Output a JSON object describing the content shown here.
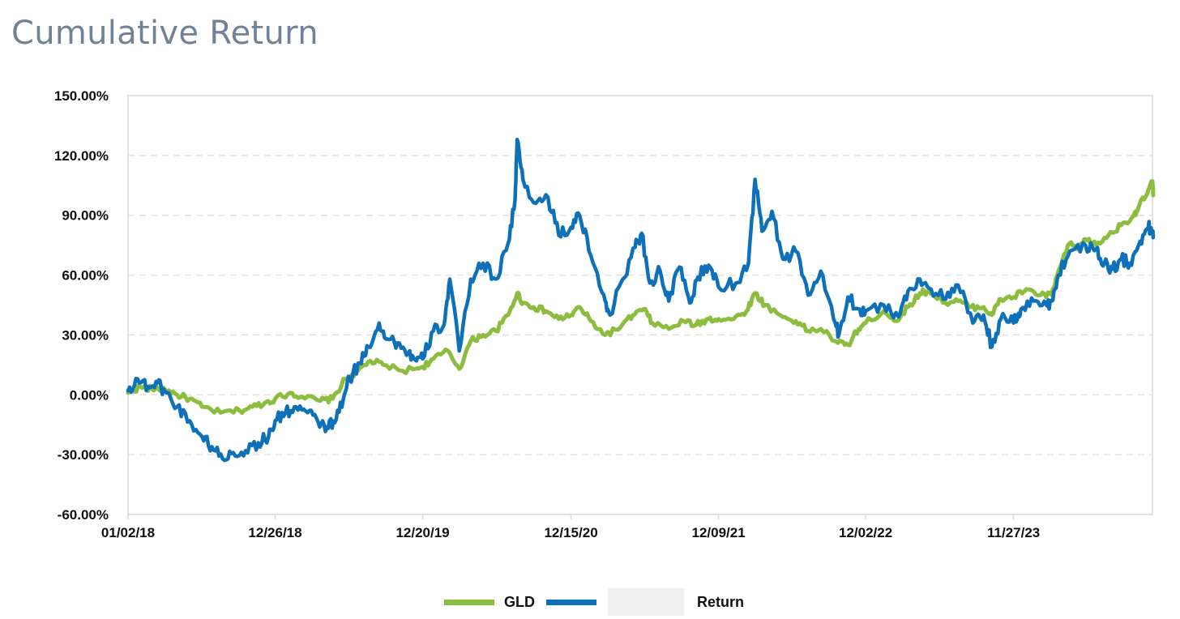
{
  "title": "Cumulative Return",
  "chart_data": {
    "type": "line",
    "title": "Cumulative Return",
    "xlabel": "",
    "ylabel": "",
    "x_ticks": [
      "01/02/18",
      "12/26/18",
      "12/20/19",
      "12/15/20",
      "12/09/21",
      "12/02/22",
      "11/27/23"
    ],
    "y_ticks": [
      "150.00%",
      "120.00%",
      "90.00%",
      "60.00%",
      "30.00%",
      "0.00%",
      "-30.00%",
      "-60.00%"
    ],
    "ylim": [
      -60,
      150
    ],
    "x_range": [
      "01/02/18",
      "2024-10"
    ],
    "grid": "horizontal dashed",
    "legend_position": "bottom-center",
    "series": [
      {
        "name": "GLD",
        "color": "#8cbd3f",
        "points": [
          [
            "2018-01-02",
            1
          ],
          [
            "2018-02-01",
            4
          ],
          [
            "2018-03-01",
            3
          ],
          [
            "2018-04-01",
            3
          ],
          [
            "2018-05-01",
            0
          ],
          [
            "2018-06-01",
            -2
          ],
          [
            "2018-07-01",
            -6
          ],
          [
            "2018-08-15",
            -9
          ],
          [
            "2018-10-01",
            -8
          ],
          [
            "2018-11-01",
            -6
          ],
          [
            "2018-12-01",
            -4
          ],
          [
            "2018-12-26",
            -2
          ],
          [
            "2019-02-01",
            1
          ],
          [
            "2019-03-01",
            -1
          ],
          [
            "2019-04-15",
            -3
          ],
          [
            "2019-05-15",
            -2
          ],
          [
            "2019-06-15",
            8
          ],
          [
            "2019-07-15",
            12
          ],
          [
            "2019-08-15",
            17
          ],
          [
            "2019-09-15",
            15
          ],
          [
            "2019-11-01",
            12
          ],
          [
            "2019-12-20",
            14
          ],
          [
            "2020-01-15",
            18
          ],
          [
            "2020-02-20",
            22
          ],
          [
            "2020-03-18",
            13
          ],
          [
            "2020-04-15",
            27
          ],
          [
            "2020-05-15",
            30
          ],
          [
            "2020-06-15",
            32
          ],
          [
            "2020-07-15",
            40
          ],
          [
            "2020-08-06",
            51
          ],
          [
            "2020-08-20",
            46
          ],
          [
            "2020-09-15",
            44
          ],
          [
            "2020-10-15",
            42
          ],
          [
            "2020-11-15",
            38
          ],
          [
            "2020-12-15",
            40
          ],
          [
            "2021-01-05",
            44
          ],
          [
            "2021-02-01",
            37
          ],
          [
            "2021-03-08",
            30
          ],
          [
            "2021-04-15",
            34
          ],
          [
            "2021-05-15",
            40
          ],
          [
            "2021-06-10",
            43
          ],
          [
            "2021-07-01",
            36
          ],
          [
            "2021-08-10",
            33
          ],
          [
            "2021-09-15",
            37
          ],
          [
            "2021-10-15",
            35
          ],
          [
            "2021-11-15",
            38
          ],
          [
            "2021-12-09",
            38
          ],
          [
            "2022-01-15",
            38
          ],
          [
            "2022-02-15",
            42
          ],
          [
            "2022-03-08",
            51
          ],
          [
            "2022-04-01",
            45
          ],
          [
            "2022-05-15",
            39
          ],
          [
            "2022-06-15",
            37
          ],
          [
            "2022-07-15",
            32
          ],
          [
            "2022-08-15",
            33
          ],
          [
            "2022-09-26",
            26
          ],
          [
            "2022-10-20",
            25
          ],
          [
            "2022-11-15",
            33
          ],
          [
            "2022-12-02",
            36
          ],
          [
            "2023-01-15",
            42
          ],
          [
            "2023-02-15",
            37
          ],
          [
            "2023-03-15",
            44
          ],
          [
            "2023-04-13",
            51
          ],
          [
            "2023-05-04",
            52
          ],
          [
            "2023-06-15",
            46
          ],
          [
            "2023-07-15",
            47
          ],
          [
            "2023-08-15",
            44
          ],
          [
            "2023-09-15",
            44
          ],
          [
            "2023-10-05",
            40
          ],
          [
            "2023-10-27",
            48
          ],
          [
            "2023-11-27",
            49
          ],
          [
            "2023-12-28",
            53
          ],
          [
            "2024-02-01",
            50
          ],
          [
            "2024-02-28",
            50
          ],
          [
            "2024-03-15",
            62
          ],
          [
            "2024-04-12",
            76
          ],
          [
            "2024-05-01",
            73
          ],
          [
            "2024-05-20",
            78
          ],
          [
            "2024-06-15",
            75
          ],
          [
            "2024-07-15",
            80
          ],
          [
            "2024-08-15",
            85
          ],
          [
            "2024-09-15",
            90
          ],
          [
            "2024-09-28",
            95
          ],
          [
            "2024-10-15",
            100
          ],
          [
            "2024-10-30",
            107
          ],
          [
            "2024-11-01",
            100
          ]
        ]
      },
      {
        "name": "",
        "color": "#0e70b8",
        "points": [
          [
            "2018-01-02",
            2
          ],
          [
            "2018-01-25",
            8
          ],
          [
            "2018-02-20",
            4
          ],
          [
            "2018-03-15",
            6
          ],
          [
            "2018-04-01",
            2
          ],
          [
            "2018-05-01",
            -6
          ],
          [
            "2018-06-01",
            -13
          ],
          [
            "2018-07-01",
            -21
          ],
          [
            "2018-07-25",
            -26
          ],
          [
            "2018-08-20",
            -32
          ],
          [
            "2018-09-15",
            -29
          ],
          [
            "2018-10-15",
            -28
          ],
          [
            "2018-11-15",
            -24
          ],
          [
            "2018-12-10",
            -21
          ],
          [
            "2018-12-26",
            -13
          ],
          [
            "2019-01-20",
            -9
          ],
          [
            "2019-02-15",
            -6
          ],
          [
            "2019-03-15",
            -9
          ],
          [
            "2019-04-10",
            -14
          ],
          [
            "2019-05-01",
            -16
          ],
          [
            "2019-05-20",
            -14
          ],
          [
            "2019-06-10",
            -2
          ],
          [
            "2019-06-25",
            8
          ],
          [
            "2019-07-20",
            16
          ],
          [
            "2019-08-10",
            24
          ],
          [
            "2019-09-05",
            36
          ],
          [
            "2019-09-25",
            28
          ],
          [
            "2019-10-20",
            26
          ],
          [
            "2019-11-15",
            21
          ],
          [
            "2019-12-05",
            17
          ],
          [
            "2019-12-20",
            18
          ],
          [
            "2020-01-15",
            32
          ],
          [
            "2020-02-10",
            35
          ],
          [
            "2020-02-24",
            58
          ],
          [
            "2020-03-18",
            22
          ],
          [
            "2020-04-15",
            58
          ],
          [
            "2020-05-15",
            66
          ],
          [
            "2020-06-15",
            58
          ],
          [
            "2020-07-15",
            76
          ],
          [
            "2020-08-01",
            98
          ],
          [
            "2020-08-06",
            128
          ],
          [
            "2020-08-20",
            108
          ],
          [
            "2020-09-20",
            96
          ],
          [
            "2020-10-20",
            99
          ],
          [
            "2020-11-15",
            80
          ],
          [
            "2020-12-15",
            84
          ],
          [
            "2021-01-05",
            90
          ],
          [
            "2021-02-01",
            70
          ],
          [
            "2021-03-05",
            50
          ],
          [
            "2021-03-20",
            40
          ],
          [
            "2021-04-20",
            58
          ],
          [
            "2021-05-20",
            74
          ],
          [
            "2021-06-05",
            81
          ],
          [
            "2021-06-25",
            56
          ],
          [
            "2021-07-20",
            62
          ],
          [
            "2021-08-10",
            47
          ],
          [
            "2021-09-05",
            64
          ],
          [
            "2021-09-30",
            46
          ],
          [
            "2021-10-20",
            59
          ],
          [
            "2021-11-15",
            65
          ],
          [
            "2021-12-09",
            54
          ],
          [
            "2022-01-20",
            56
          ],
          [
            "2022-02-20",
            66
          ],
          [
            "2022-03-08",
            108
          ],
          [
            "2022-03-25",
            82
          ],
          [
            "2022-04-18",
            92
          ],
          [
            "2022-05-15",
            68
          ],
          [
            "2022-06-15",
            72
          ],
          [
            "2022-07-15",
            50
          ],
          [
            "2022-08-15",
            62
          ],
          [
            "2022-09-15",
            38
          ],
          [
            "2022-09-28",
            30
          ],
          [
            "2022-10-20",
            49
          ],
          [
            "2022-11-15",
            43
          ],
          [
            "2022-12-02",
            42
          ],
          [
            "2023-01-15",
            45
          ],
          [
            "2023-02-20",
            39
          ],
          [
            "2023-03-15",
            52
          ],
          [
            "2023-04-13",
            58
          ],
          [
            "2023-05-10",
            53
          ],
          [
            "2023-06-15",
            48
          ],
          [
            "2023-07-15",
            55
          ],
          [
            "2023-08-20",
            36
          ],
          [
            "2023-09-15",
            40
          ],
          [
            "2023-10-05",
            24
          ],
          [
            "2023-10-27",
            38
          ],
          [
            "2023-11-27",
            36
          ],
          [
            "2023-12-15",
            43
          ],
          [
            "2024-01-15",
            47
          ],
          [
            "2024-02-15",
            45
          ],
          [
            "2024-02-28",
            47
          ],
          [
            "2024-03-15",
            60
          ],
          [
            "2024-04-12",
            72
          ],
          [
            "2024-05-20",
            75
          ],
          [
            "2024-06-15",
            73
          ],
          [
            "2024-07-05",
            66
          ],
          [
            "2024-07-25",
            63
          ],
          [
            "2024-08-15",
            68
          ],
          [
            "2024-09-05",
            66
          ],
          [
            "2024-09-30",
            77
          ],
          [
            "2024-10-20",
            84
          ],
          [
            "2024-10-30",
            82
          ],
          [
            "2024-11-01",
            80
          ]
        ]
      }
    ]
  },
  "legend": {
    "items": [
      {
        "label": "GLD",
        "color": "#8cbd3f"
      },
      {
        "label": "Return",
        "color": "#0e70b8"
      }
    ]
  }
}
